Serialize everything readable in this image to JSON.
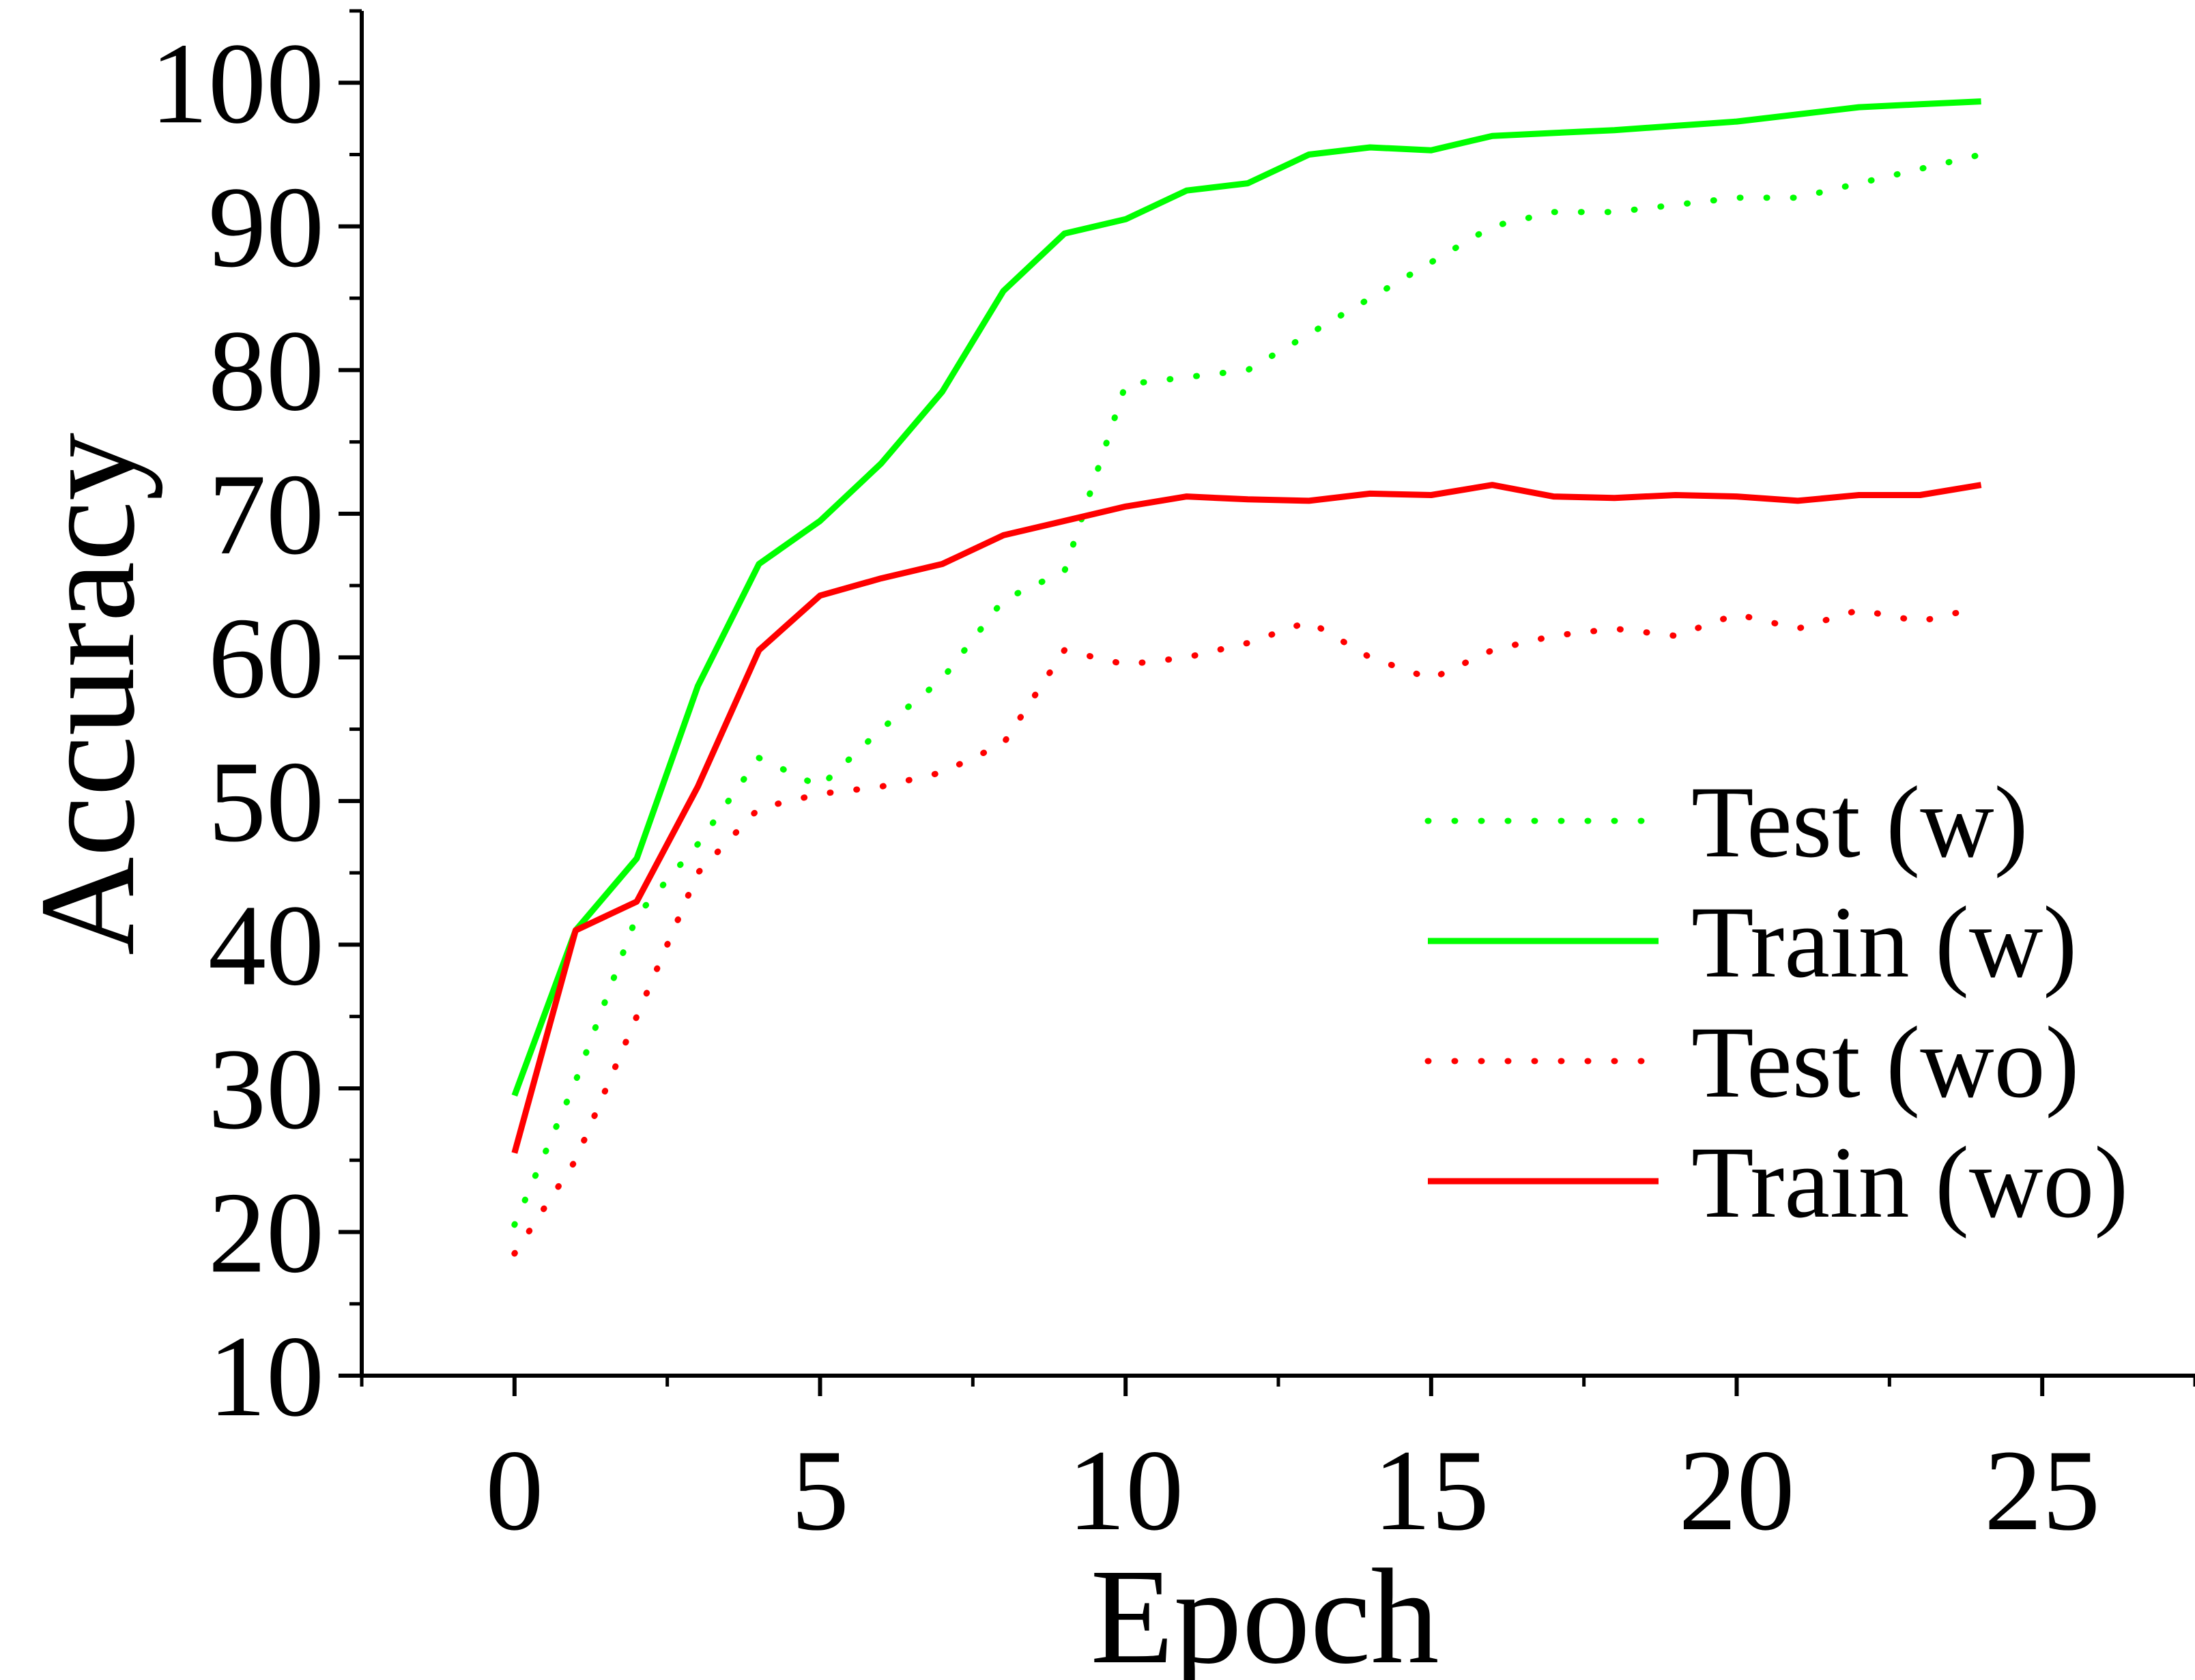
{
  "chart_data": {
    "type": "line",
    "title": "",
    "xlabel": "Epoch",
    "ylabel": "Accuracy",
    "xlim": [
      -2.5,
      27.5
    ],
    "ylim": [
      10,
      105
    ],
    "xticks": [
      0,
      5,
      10,
      15,
      20,
      25
    ],
    "yticks": [
      10,
      20,
      30,
      40,
      50,
      60,
      70,
      80,
      90,
      100
    ],
    "xtick_labels": [
      "0",
      "5",
      "10",
      "15",
      "20",
      "25"
    ],
    "ytick_labels": [
      "10",
      "20",
      "30",
      "40",
      "50",
      "60",
      "70",
      "80",
      "90",
      "100"
    ],
    "grid": false,
    "legend_position": "center-right",
    "x": [
      0,
      1,
      2,
      3,
      4,
      5,
      6,
      7,
      8,
      9,
      10,
      11,
      12,
      13,
      14,
      15,
      16,
      17,
      18,
      19,
      20,
      21,
      22,
      23,
      24
    ],
    "series": [
      {
        "name": "Test (w)",
        "color": "#00ff00",
        "style": "dotted",
        "values": [
          20.5,
          30.5,
          42,
          47,
          53,
          51,
          55,
          58.5,
          64,
          66,
          79,
          79.5,
          80,
          82.5,
          85,
          87.5,
          90,
          91,
          91,
          91.5,
          92,
          92,
          93,
          94,
          95
        ]
      },
      {
        "name": "Train (w)",
        "color": "#00ff00",
        "style": "solid",
        "values": [
          29.5,
          41,
          46,
          58,
          66.5,
          69.5,
          73.5,
          78.5,
          85.5,
          89.5,
          90.5,
          92.5,
          93,
          95,
          95.5,
          95.3,
          96.3,
          96.5,
          96.7,
          97,
          97.3,
          97.8,
          98.3,
          98.5,
          98.7
        ]
      },
      {
        "name": "Test (wo)",
        "color": "#ff0000",
        "style": "dotted",
        "values": [
          18.5,
          25,
          35,
          45,
          49.5,
          50.5,
          51,
          52,
          54,
          60.5,
          59.5,
          60,
          61,
          62.5,
          60,
          58.5,
          60.5,
          61.5,
          62,
          61.5,
          63,
          62,
          63.3,
          62.5,
          63.5
        ]
      },
      {
        "name": "Train (wo)",
        "color": "#ff0000",
        "style": "solid",
        "values": [
          25.5,
          41,
          43,
          51,
          60.5,
          64.3,
          65.5,
          66.5,
          68.5,
          69.5,
          70.5,
          71.2,
          71,
          70.9,
          71.4,
          71.3,
          72,
          71.2,
          71.1,
          71.3,
          71.2,
          70.9,
          71.3,
          71.3,
          72
        ]
      }
    ]
  }
}
